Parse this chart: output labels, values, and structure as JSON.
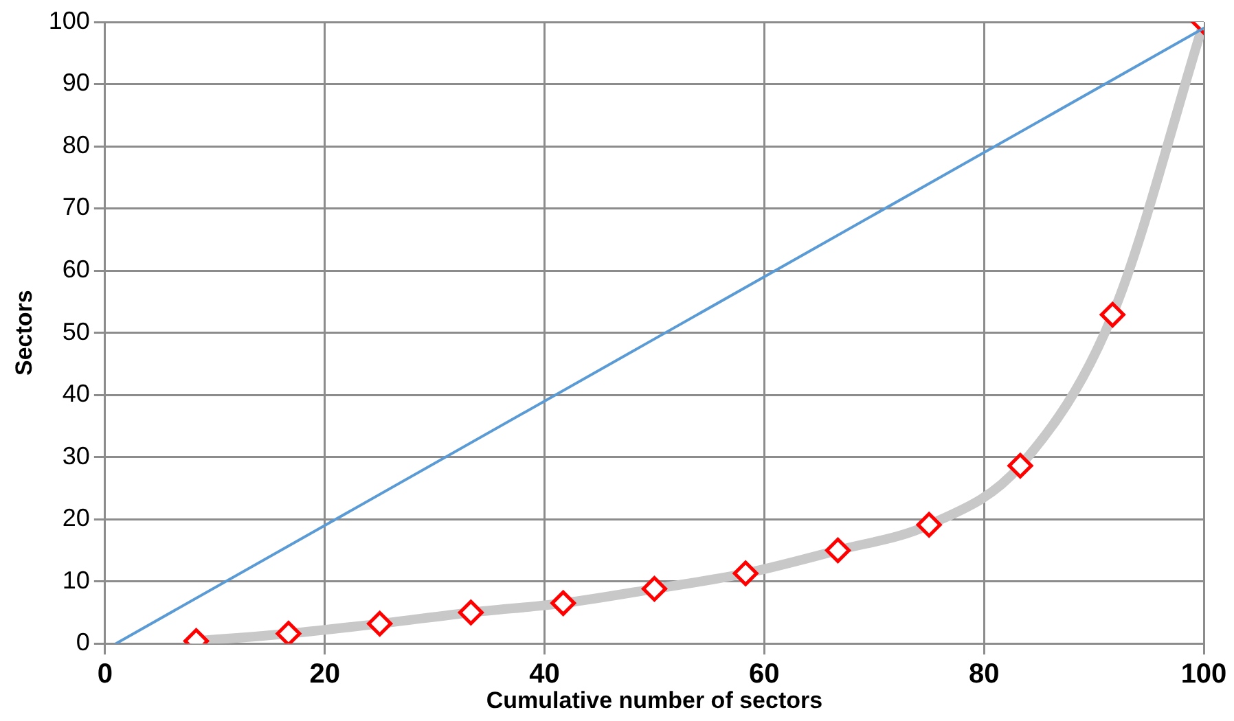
{
  "chart_data": {
    "type": "line",
    "xlabel": "Cumulative number of sectors",
    "ylabel": "Sectors",
    "xlim": [
      0,
      100
    ],
    "xticks": [
      0,
      20,
      40,
      60,
      80,
      100
    ],
    "ylim": [
      0,
      100
    ],
    "yticks": [
      0,
      10,
      20,
      30,
      40,
      50,
      60,
      70,
      80,
      90,
      100
    ],
    "grid": true,
    "legend": false,
    "series": [
      {
        "color": "#c8c8c8",
        "marker": "none",
        "x": [
          8.3,
          16.7,
          25,
          33.3,
          41.7,
          50,
          58.3,
          66.7,
          75,
          83.3,
          91.7,
          100
        ],
        "values": [
          0.4,
          1.6,
          3.2,
          5,
          6.5,
          8.8,
          11.3,
          15,
          19.1,
          28.6,
          52.9,
          100
        ]
      },
      {
        "type": "scatter",
        "color": "#ff0000",
        "marker": "diamond",
        "x": [
          8.3,
          16.7,
          25,
          33.3,
          41.7,
          50,
          58.3,
          66.7,
          75,
          83.3,
          91.7,
          100
        ],
        "values": [
          0.4,
          1.6,
          3.2,
          5,
          6.5,
          8.8,
          11.3,
          15,
          19.1,
          28.6,
          52.9,
          100
        ]
      },
      {
        "color": "#5b9bd5",
        "marker": "none",
        "x": [
          1,
          100
        ],
        "values": [
          0,
          99
        ]
      }
    ]
  }
}
